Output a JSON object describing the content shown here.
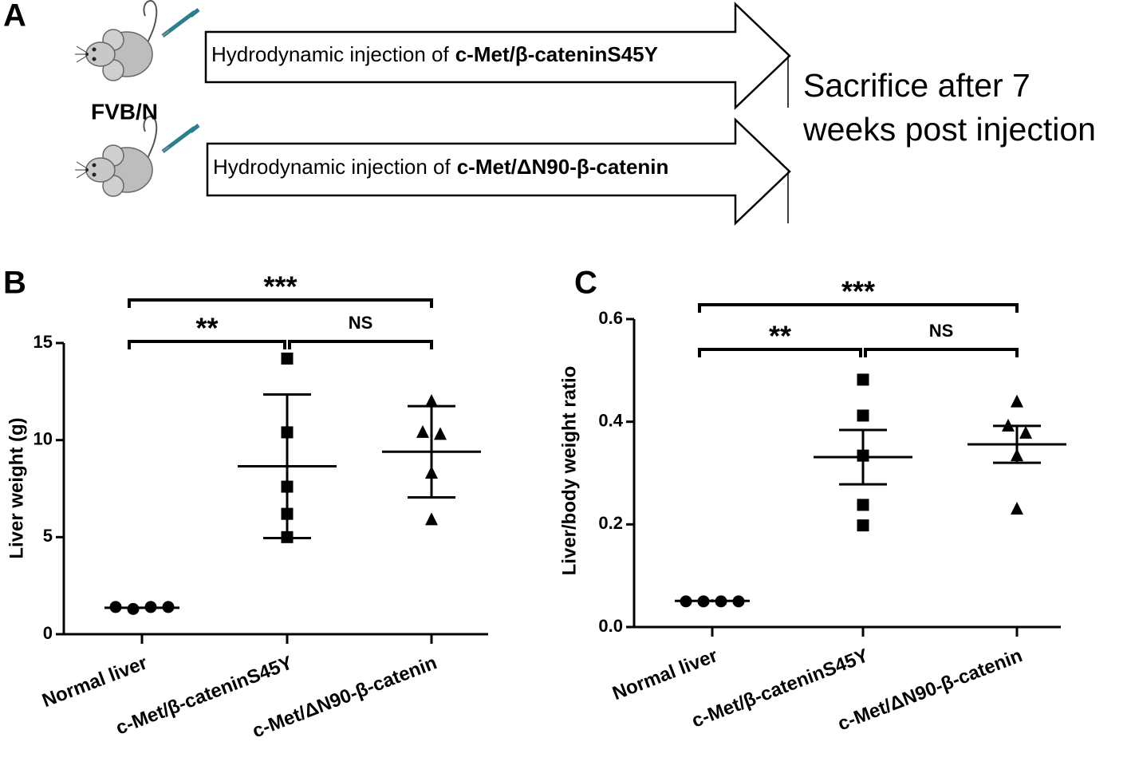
{
  "panel_a": {
    "label": "A",
    "strain": "FVB/N",
    "injections": [
      {
        "prefix": "Hydrodynamic injection of",
        "construct": "c-Met/β-cateninS45Y"
      },
      {
        "prefix": "Hydrodynamic injection of",
        "construct": "c-Met/ΔN90-β-catenin"
      }
    ],
    "outcome": [
      "Sacrifice after 7",
      "weeks post injection"
    ]
  },
  "chart_data": [
    {
      "type": "dot",
      "panel_label": "B",
      "y_label": "Liver weight (g)",
      "categories": [
        "Normal liver",
        "c-Met/β-cateninS45Y",
        "c-Met/ΔN90-β-catenin"
      ],
      "markers": [
        "circle",
        "square",
        "triangle"
      ],
      "color": "#000000",
      "points": [
        [
          1.4,
          1.3,
          1.4,
          1.4
        ],
        [
          14.2,
          10.4,
          7.6,
          6.2,
          5.0
        ],
        [
          12.0,
          10.4,
          10.3,
          8.3,
          5.9
        ]
      ],
      "mean": [
        1.36,
        8.65,
        9.4
      ],
      "error": [
        0.06,
        3.7,
        2.35
      ],
      "ylim": [
        0,
        15
      ],
      "yticks": [
        0,
        5,
        10,
        15
      ],
      "grid": false,
      "significance": [
        {
          "text": "***",
          "between": [
            0,
            2
          ]
        },
        {
          "text": "**",
          "between": [
            0,
            1
          ]
        },
        {
          "text": "NS",
          "between": [
            1,
            2
          ]
        }
      ]
    },
    {
      "type": "dot",
      "panel_label": "C",
      "y_label": "Liver/body weight ratio",
      "categories": [
        "Normal liver",
        "c-Met/β-cateninS45Y",
        "c-Met/ΔN90-β-catenin"
      ],
      "markers": [
        "circle",
        "square",
        "triangle"
      ],
      "color": "#000000",
      "points": [
        [
          0.05,
          0.05,
          0.05,
          0.05
        ],
        [
          0.482,
          0.412,
          0.334,
          0.238,
          0.198
        ],
        [
          0.439,
          0.392,
          0.378,
          0.334,
          0.23
        ]
      ],
      "mean": [
        0.051,
        0.331,
        0.356
      ],
      "error": [
        0.003,
        0.053,
        0.036
      ],
      "ylim": [
        0,
        0.6
      ],
      "yticks": [
        {
          "value": 0,
          "label": "0.0"
        },
        0.2,
        0.4,
        0.6
      ],
      "grid": false,
      "significance": [
        {
          "text": "***",
          "between": [
            0,
            2
          ]
        },
        {
          "text": "**",
          "between": [
            0,
            1
          ]
        },
        {
          "text": "NS",
          "between": [
            1,
            2
          ]
        }
      ]
    }
  ]
}
